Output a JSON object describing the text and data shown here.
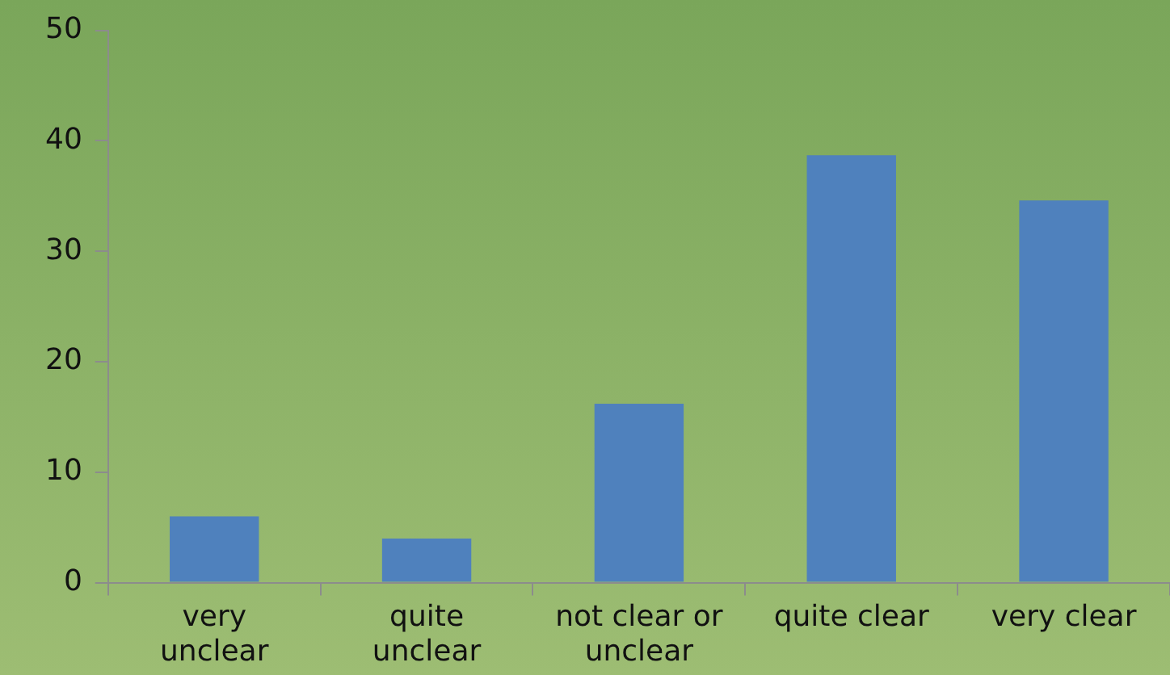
{
  "chart_data": {
    "type": "bar",
    "categories": [
      "very unclear",
      "quite unclear",
      "not clear or unclear",
      "quite clear",
      "very clear"
    ],
    "values": [
      6,
      4,
      16.2,
      38.7,
      34.6
    ],
    "color": "#4f81bd",
    "ylim": [
      0,
      50
    ],
    "yticks": [
      0,
      10,
      20,
      30,
      40,
      50
    ],
    "grid": false,
    "legend": false
  }
}
